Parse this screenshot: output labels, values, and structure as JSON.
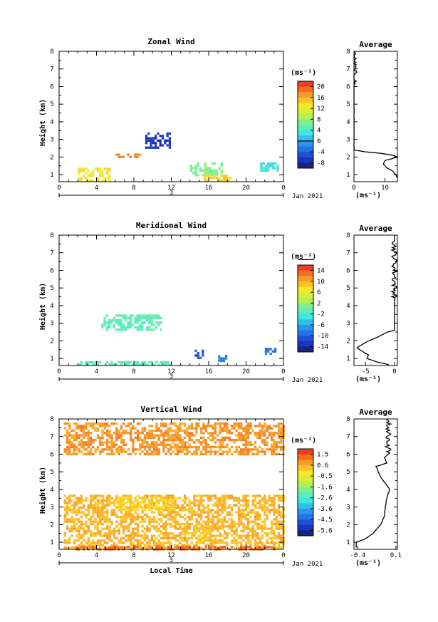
{
  "chart_data": [
    {
      "type": "heatmap",
      "title": "Zonal Wind",
      "ylabel": "Height (km)",
      "xlabel": "",
      "x_ticks": [
        "0",
        "4",
        "8",
        "12",
        "16",
        "20",
        "0"
      ],
      "xlim": [
        0,
        24
      ],
      "ylim": [
        0.6,
        8
      ],
      "y_ticks": [
        "1",
        "2",
        "3",
        "4",
        "5",
        "6",
        "7",
        "8"
      ],
      "day_label": "3",
      "date_label": "Jan 2021",
      "colorbar": {
        "unit": "(ms⁻¹)",
        "ticks": [
          "20",
          "16",
          "12",
          "8",
          "4",
          "0",
          "-4",
          "-8"
        ],
        "range": [
          -10,
          22
        ],
        "zero_line": 0
      },
      "regions": [
        {
          "x": [
            9.2,
            11.8
          ],
          "y": [
            2.5,
            3.4
          ],
          "value": -7
        },
        {
          "x": [
            6.0,
            8.6
          ],
          "y": [
            2.0,
            2.2
          ],
          "value": 18
        },
        {
          "x": [
            2.0,
            5.5
          ],
          "y": [
            0.7,
            1.4
          ],
          "value": 13
        },
        {
          "x": [
            14.0,
            17.5
          ],
          "y": [
            0.9,
            1.7
          ],
          "value": 7
        },
        {
          "x": [
            15.5,
            18.5
          ],
          "y": [
            0.7,
            1.0
          ],
          "value": 14
        },
        {
          "x": [
            21.5,
            23.5
          ],
          "y": [
            1.2,
            1.7
          ],
          "value": 3
        }
      ],
      "profile": {
        "title": "Average",
        "xlabel": "(ms⁻¹)",
        "x_ticks": [
          "0",
          "10"
        ],
        "xlim": [
          0,
          14
        ],
        "points": [
          [
            0.0,
            8.0
          ],
          [
            0.0,
            6.6
          ],
          [
            0.0,
            2.4
          ],
          [
            3.5,
            2.3
          ],
          [
            9.0,
            2.2
          ],
          [
            12.5,
            2.1
          ],
          [
            14.0,
            2.0
          ],
          [
            12.0,
            1.9
          ],
          [
            10.0,
            1.8
          ],
          [
            9.5,
            1.6
          ],
          [
            10.5,
            1.4
          ],
          [
            12.5,
            1.2
          ],
          [
            13.5,
            1.0
          ],
          [
            14.0,
            0.8
          ]
        ]
      }
    },
    {
      "type": "heatmap",
      "title": "Meridional Wind",
      "ylabel": "Height (km)",
      "xlabel": "",
      "x_ticks": [
        "0",
        "4",
        "8",
        "12",
        "16",
        "20",
        "0"
      ],
      "xlim": [
        0,
        24
      ],
      "ylim": [
        0.6,
        8
      ],
      "y_ticks": [
        "1",
        "2",
        "3",
        "4",
        "5",
        "6",
        "7",
        "8"
      ],
      "day_label": "3",
      "date_label": "Jan 2021",
      "colorbar": {
        "unit": "(ms⁻¹)",
        "ticks": [
          "14",
          "10",
          "6",
          "2",
          "-2",
          "-6",
          "-10",
          "-14"
        ],
        "range": [
          -16,
          16
        ],
        "zero_line": 0
      },
      "regions": [
        {
          "x": [
            4.5,
            11.0
          ],
          "y": [
            2.6,
            3.5
          ],
          "value": -1
        },
        {
          "x": [
            2.0,
            12.0
          ],
          "y": [
            0.65,
            0.85
          ],
          "value": -1
        },
        {
          "x": [
            14.5,
            15.5
          ],
          "y": [
            1.0,
            1.5
          ],
          "value": -11
        },
        {
          "x": [
            22.0,
            23.2
          ],
          "y": [
            1.3,
            1.6
          ],
          "value": -9
        },
        {
          "x": [
            17.0,
            17.8
          ],
          "y": [
            0.9,
            1.2
          ],
          "value": -8
        }
      ],
      "profile": {
        "title": "Average",
        "xlabel": "(ms⁻¹)",
        "x_ticks": [
          "-5",
          "0"
        ],
        "xlim": [
          -7,
          0.5
        ],
        "points": [
          [
            0.0,
            8.0
          ],
          [
            0.0,
            3.8
          ],
          [
            0.0,
            2.6
          ],
          [
            -1.2,
            2.5
          ],
          [
            -3.0,
            2.2
          ],
          [
            -4.5,
            2.0
          ],
          [
            -5.5,
            1.8
          ],
          [
            -6.5,
            1.6
          ],
          [
            -5.5,
            1.4
          ],
          [
            -4.5,
            1.2
          ],
          [
            -4.8,
            1.0
          ],
          [
            -3.0,
            0.8
          ],
          [
            -1.0,
            0.65
          ]
        ]
      }
    },
    {
      "type": "heatmap",
      "title": "Vertical Wind",
      "ylabel": "Height (km)",
      "xlabel": "Local Time",
      "x_ticks": [
        "0",
        "4",
        "8",
        "12",
        "16",
        "20",
        "0"
      ],
      "xlim": [
        0,
        24
      ],
      "ylim": [
        0.6,
        8
      ],
      "y_ticks": [
        "1",
        "2",
        "3",
        "4",
        "5",
        "6",
        "7",
        "8"
      ],
      "day_label": "3",
      "date_label": "Jan 2021",
      "colorbar": {
        "unit": "(ms⁻¹)",
        "ticks": [
          "1.5",
          "0.6",
          "-0.5",
          "-1.6",
          "-2.6",
          "-3.6",
          "-4.5",
          "-5.6"
        ],
        "range": [
          -6.1,
          2.0
        ],
        "zero_line": null
      },
      "regions": [
        {
          "x": [
            0.5,
            24.0
          ],
          "y": [
            6.0,
            7.8
          ],
          "value": 0.8
        },
        {
          "x": [
            0.5,
            24.0
          ],
          "y": [
            0.7,
            3.7
          ],
          "value": 0.4
        },
        {
          "x": [
            6.0,
            12.5
          ],
          "y": [
            2.8,
            3.6
          ],
          "value": 0.0
        },
        {
          "x": [
            1.5,
            23.0
          ],
          "y": [
            0.6,
            0.8
          ],
          "value": 1.2
        },
        {
          "x": [
            14.5,
            16.0
          ],
          "y": [
            1.0,
            2.0
          ],
          "value": 0.0
        }
      ],
      "profile": {
        "title": "Average",
        "xlabel": "(ms⁻¹)",
        "x_ticks": [
          "-0.4",
          "0.1"
        ],
        "xlim": [
          -0.45,
          0.12
        ],
        "points": [
          [
            0.0,
            8.0
          ],
          [
            0.0,
            6.0
          ],
          [
            -0.05,
            5.8
          ],
          [
            -0.02,
            5.5
          ],
          [
            -0.16,
            5.3
          ],
          [
            -0.1,
            4.7
          ],
          [
            0.02,
            4.0
          ],
          [
            -0.02,
            3.5
          ],
          [
            -0.04,
            3.0
          ],
          [
            -0.05,
            2.5
          ],
          [
            -0.1,
            2.0
          ],
          [
            -0.2,
            1.5
          ],
          [
            -0.3,
            1.2
          ],
          [
            -0.42,
            1.0
          ],
          [
            -0.42,
            0.7
          ]
        ]
      }
    }
  ]
}
